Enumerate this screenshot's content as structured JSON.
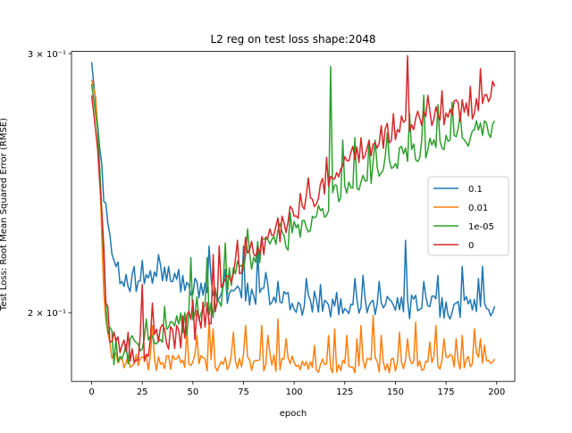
{
  "chart_data": {
    "type": "line",
    "title": "L2 reg on test loss shape:2048",
    "xlabel": "epoch",
    "ylabel": "Test Loss: Root Mean Squared Error (RMSE)",
    "xlim": [
      -9.95,
      208.95
    ],
    "ylim": [
      0.1796,
      0.301
    ],
    "yscale": "log",
    "xticks": [
      0,
      25,
      50,
      75,
      100,
      125,
      150,
      175,
      200
    ],
    "xtick_labels": [
      "0",
      "25",
      "50",
      "75",
      "100",
      "125",
      "150",
      "175",
      "200"
    ],
    "yticks": [
      0.2,
      0.3
    ],
    "ytick_labels": [
      "2 × 10⁻¹",
      "3 × 10⁻¹"
    ],
    "grid": false,
    "legend_position": "center-right",
    "series": [
      {
        "name": "0.1",
        "color": "#1f77b4",
        "start": 0.296,
        "floor": 0.2,
        "ctrl": [
          [
            0,
            0.296
          ],
          [
            3,
            0.268
          ],
          [
            6,
            0.24
          ],
          [
            8,
            0.228
          ],
          [
            10,
            0.218
          ],
          [
            15,
            0.209
          ],
          [
            25,
            0.211
          ],
          [
            30,
            0.213
          ],
          [
            40,
            0.21
          ],
          [
            55,
            0.208
          ],
          [
            65,
            0.206
          ],
          [
            80,
            0.206
          ],
          [
            100,
            0.203
          ],
          [
            150,
            0.202
          ],
          [
            199,
            0.202
          ]
        ],
        "noise": 0.004,
        "spikes": [
          [
            21,
            0.215
          ],
          [
            25,
            0.217
          ],
          [
            33,
            0.219
          ],
          [
            38,
            0.215
          ],
          [
            43,
            0.214
          ],
          [
            58,
            0.222
          ],
          [
            66,
            0.214
          ],
          [
            75,
            0.222
          ],
          [
            82,
            0.22
          ],
          [
            86,
            0.213
          ],
          [
            92,
            0.21
          ],
          [
            106,
            0.211
          ],
          [
            113,
            0.209
          ],
          [
            130,
            0.211
          ],
          [
            134,
            0.212
          ],
          [
            142,
            0.21
          ],
          [
            155,
            0.224
          ],
          [
            164,
            0.21
          ],
          [
            171,
            0.212
          ],
          [
            183,
            0.215
          ],
          [
            191,
            0.211
          ],
          [
            193,
            0.215
          ],
          [
            196,
            0.201
          ],
          [
            199,
            0.202
          ]
        ]
      },
      {
        "name": "0.01",
        "color": "#ff7f0e",
        "start": 0.288,
        "floor": 0.184,
        "ctrl": [
          [
            0,
            0.288
          ],
          [
            2,
            0.28
          ],
          [
            4,
            0.25
          ],
          [
            6,
            0.205
          ],
          [
            8,
            0.192
          ],
          [
            10,
            0.188
          ],
          [
            15,
            0.186
          ],
          [
            25,
            0.185
          ],
          [
            40,
            0.185
          ],
          [
            80,
            0.185
          ],
          [
            150,
            0.184
          ],
          [
            199,
            0.186
          ]
        ],
        "noise": 0.0025,
        "spikes": [
          [
            30,
            0.196
          ],
          [
            47,
            0.195
          ],
          [
            52,
            0.193
          ],
          [
            58,
            0.198
          ],
          [
            60,
            0.195
          ],
          [
            70,
            0.194
          ],
          [
            76,
            0.196
          ],
          [
            84,
            0.196
          ],
          [
            87,
            0.193
          ],
          [
            88,
            0.188
          ],
          [
            92,
            0.198
          ],
          [
            96,
            0.192
          ],
          [
            110,
            0.19
          ],
          [
            117,
            0.193
          ],
          [
            120,
            0.195
          ],
          [
            126,
            0.193
          ],
          [
            131,
            0.192
          ],
          [
            133,
            0.196
          ],
          [
            139,
            0.199
          ],
          [
            143,
            0.193
          ],
          [
            152,
            0.194
          ],
          [
            156,
            0.192
          ],
          [
            160,
            0.197
          ],
          [
            167,
            0.191
          ],
          [
            170,
            0.196
          ],
          [
            174,
            0.192
          ],
          [
            180,
            0.192
          ],
          [
            183,
            0.193
          ],
          [
            189,
            0.195
          ],
          [
            192,
            0.192
          ],
          [
            194,
            0.19
          ],
          [
            199,
            0.186
          ]
        ]
      },
      {
        "name": "1e-05",
        "color": "#2ca02c",
        "start": 0.286,
        "floor": 0.19,
        "ctrl": [
          [
            0,
            0.286
          ],
          [
            3,
            0.266
          ],
          [
            5,
            0.235
          ],
          [
            7,
            0.205
          ],
          [
            9,
            0.192
          ],
          [
            12,
            0.188
          ],
          [
            20,
            0.19
          ],
          [
            30,
            0.19
          ],
          [
            40,
            0.195
          ],
          [
            50,
            0.197
          ],
          [
            60,
            0.203
          ],
          [
            70,
            0.212
          ],
          [
            80,
            0.218
          ],
          [
            90,
            0.222
          ],
          [
            100,
            0.227
          ],
          [
            110,
            0.231
          ],
          [
            120,
            0.24
          ],
          [
            130,
            0.245
          ],
          [
            140,
            0.249
          ],
          [
            150,
            0.253
          ],
          [
            160,
            0.258
          ],
          [
            170,
            0.26
          ],
          [
            180,
            0.263
          ],
          [
            190,
            0.265
          ],
          [
            199,
            0.268
          ]
        ],
        "noise": 0.005,
        "spikes": [
          [
            27,
            0.198
          ],
          [
            36,
            0.202
          ],
          [
            42,
            0.199
          ],
          [
            49,
            0.218
          ],
          [
            52,
            0.205
          ],
          [
            57,
            0.218
          ],
          [
            66,
            0.223
          ],
          [
            73,
            0.215
          ],
          [
            77,
            0.228
          ],
          [
            84,
            0.224
          ],
          [
            93,
            0.23
          ],
          [
            98,
            0.234
          ],
          [
            104,
            0.231
          ],
          [
            110,
            0.232
          ],
          [
            118,
            0.294
          ],
          [
            124,
            0.262
          ],
          [
            130,
            0.263
          ],
          [
            137,
            0.262
          ],
          [
            140,
            0.262
          ],
          [
            146,
            0.265
          ],
          [
            157,
            0.273
          ],
          [
            164,
            0.281
          ],
          [
            171,
            0.277
          ],
          [
            178,
            0.278
          ],
          [
            182,
            0.273
          ],
          [
            190,
            0.27
          ],
          [
            199,
            0.27
          ]
        ]
      },
      {
        "name": "0",
        "color": "#d62728",
        "start": 0.281,
        "floor": 0.19,
        "ctrl": [
          [
            0,
            0.281
          ],
          [
            3,
            0.258
          ],
          [
            5,
            0.232
          ],
          [
            7,
            0.205
          ],
          [
            9,
            0.195
          ],
          [
            12,
            0.19
          ],
          [
            20,
            0.189
          ],
          [
            30,
            0.19
          ],
          [
            40,
            0.193
          ],
          [
            50,
            0.196
          ],
          [
            60,
            0.202
          ],
          [
            70,
            0.214
          ],
          [
            80,
            0.22
          ],
          [
            90,
            0.225
          ],
          [
            100,
            0.233
          ],
          [
            110,
            0.241
          ],
          [
            120,
            0.25
          ],
          [
            130,
            0.255
          ],
          [
            140,
            0.261
          ],
          [
            150,
            0.266
          ],
          [
            160,
            0.27
          ],
          [
            170,
            0.272
          ],
          [
            180,
            0.274
          ],
          [
            190,
            0.276
          ],
          [
            199,
            0.285
          ]
        ],
        "noise": 0.005,
        "spikes": [
          [
            25,
            0.209
          ],
          [
            30,
            0.203
          ],
          [
            45,
            0.199
          ],
          [
            50,
            0.204
          ],
          [
            60,
            0.219
          ],
          [
            63,
            0.222
          ],
          [
            72,
            0.224
          ],
          [
            76,
            0.225
          ],
          [
            88,
            0.228
          ],
          [
            92,
            0.232
          ],
          [
            103,
            0.241
          ],
          [
            107,
            0.247
          ],
          [
            116,
            0.255
          ],
          [
            121,
            0.249
          ],
          [
            128,
            0.257
          ],
          [
            133,
            0.263
          ],
          [
            143,
            0.268
          ],
          [
            149,
            0.273
          ],
          [
            156,
            0.299
          ],
          [
            160,
            0.271
          ],
          [
            166,
            0.281
          ],
          [
            173,
            0.283
          ],
          [
            180,
            0.279
          ],
          [
            187,
            0.285
          ],
          [
            192,
            0.293
          ],
          [
            199,
            0.285
          ]
        ]
      }
    ]
  }
}
